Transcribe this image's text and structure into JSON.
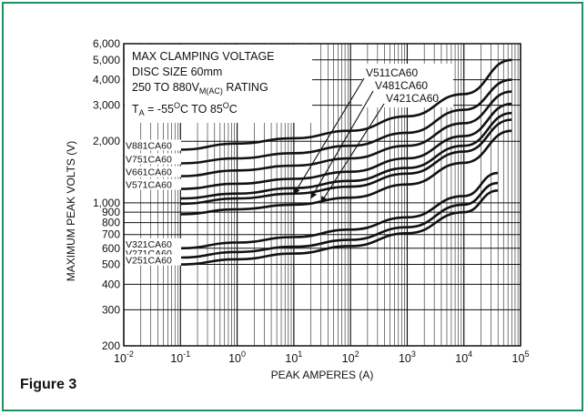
{
  "figure_label": "Figure 3",
  "chart_data": {
    "type": "line",
    "x_scale": "log",
    "y_scale": "log",
    "xlim": [
      0.01,
      100000
    ],
    "ylim": [
      200,
      6000
    ],
    "xlabel": "PEAK AMPERES (A)",
    "ylabel": "MAXIMUM PEAK VOLTS (V)",
    "grid": true,
    "x_ticks": [
      {
        "value": 0.01,
        "base": "10",
        "exp": "-2"
      },
      {
        "value": 0.1,
        "base": "10",
        "exp": "-1"
      },
      {
        "value": 1,
        "base": "10",
        "exp": "0"
      },
      {
        "value": 10,
        "base": "10",
        "exp": "1"
      },
      {
        "value": 100,
        "base": "10",
        "exp": "2"
      },
      {
        "value": 1000,
        "base": "10",
        "exp": "3"
      },
      {
        "value": 10000,
        "base": "10",
        "exp": "4"
      },
      {
        "value": 100000,
        "base": "10",
        "exp": "5"
      }
    ],
    "y_ticks": [
      {
        "value": 200,
        "label": "200"
      },
      {
        "value": 300,
        "label": "300"
      },
      {
        "value": 400,
        "label": "400"
      },
      {
        "value": 500,
        "label": "500"
      },
      {
        "value": 600,
        "label": "600"
      },
      {
        "value": 700,
        "label": "700"
      },
      {
        "value": 800,
        "label": "800"
      },
      {
        "value": 900,
        "label": "900"
      },
      {
        "value": 1000,
        "label": "1,000"
      },
      {
        "value": 2000,
        "label": "2,000"
      },
      {
        "value": 3000,
        "label": "3,000"
      },
      {
        "value": 4000,
        "label": "4,000"
      },
      {
        "value": 5000,
        "label": "5,000"
      },
      {
        "value": 6000,
        "label": "6,000"
      }
    ],
    "annotation_box": {
      "line1": "MAX CLAMPING VOLTAGE",
      "line2": "DISC SIZE 60mm",
      "line3_a": "250 TO 880V",
      "line3_sub": "M(AC)",
      "line3_b": " RATING",
      "line4_a": "T",
      "line4_sub": "A",
      "line4_b": " = -55",
      "line4_sup1": "O",
      "line4_c": "C TO 85",
      "line4_sup2": "O",
      "line4_d": "C"
    },
    "callouts": [
      {
        "name": "V511CA60",
        "target_x": 10,
        "target_y": 1100
      },
      {
        "name": "V481CA60",
        "target_x": 20,
        "target_y": 1050
      },
      {
        "name": "V421CA60",
        "target_x": 30,
        "target_y": 1000
      }
    ],
    "series": [
      {
        "name": "V881CA60",
        "x": [
          0.1,
          1,
          10,
          100,
          1000,
          10000,
          70000
        ],
        "y": [
          1820,
          1950,
          2070,
          2250,
          2650,
          3400,
          5000
        ]
      },
      {
        "name": "V751CA60",
        "x": [
          0.1,
          1,
          10,
          100,
          1000,
          10000,
          70000
        ],
        "y": [
          1560,
          1650,
          1750,
          1900,
          2200,
          2850,
          4000
        ]
      },
      {
        "name": "V661CA60",
        "x": [
          0.1,
          1,
          10,
          100,
          1000,
          10000,
          70000
        ],
        "y": [
          1350,
          1440,
          1520,
          1650,
          1900,
          2450,
          3500
        ]
      },
      {
        "name": "V571CA60",
        "x": [
          0.1,
          1,
          10,
          100,
          1000,
          10000,
          70000
        ],
        "y": [
          1170,
          1240,
          1310,
          1420,
          1650,
          2120,
          3050
        ]
      },
      {
        "name": "V511CA60",
        "x": [
          0.1,
          1,
          10,
          100,
          1000,
          10000,
          70000
        ],
        "y": [
          1050,
          1110,
          1180,
          1280,
          1480,
          1900,
          2750
        ]
      },
      {
        "name": "V481CA60",
        "x": [
          0.1,
          1,
          10,
          100,
          1000,
          10000,
          70000
        ],
        "y": [
          990,
          1050,
          1110,
          1200,
          1390,
          1780,
          2550
        ]
      },
      {
        "name": "V421CA60",
        "x": [
          0.1,
          1,
          10,
          100,
          1000,
          10000,
          70000
        ],
        "y": [
          880,
          930,
          980,
          1060,
          1230,
          1570,
          2250
        ]
      },
      {
        "name": "V321CA60",
        "x": [
          0.1,
          1,
          10,
          100,
          1000,
          10000,
          40000
        ],
        "y": [
          600,
          640,
          680,
          740,
          850,
          1080,
          1400
        ]
      },
      {
        "name": "V271CA60",
        "x": [
          0.1,
          1,
          10,
          100,
          1000,
          10000,
          40000
        ],
        "y": [
          540,
          575,
          610,
          660,
          760,
          980,
          1250
        ]
      },
      {
        "name": "V251CA60",
        "x": [
          0.1,
          1,
          10,
          100,
          1000,
          10000,
          40000
        ],
        "y": [
          500,
          530,
          565,
          615,
          710,
          900,
          1150
        ]
      }
    ],
    "left_labels": [
      "V881CA60",
      "V751CA60",
      "V661CA60",
      "V571CA60",
      "V321CA60",
      "V271CA60",
      "V251CA60"
    ]
  }
}
